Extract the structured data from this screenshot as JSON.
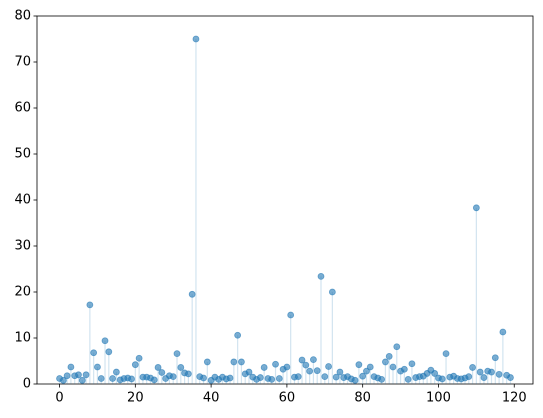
{
  "chart_data": {
    "type": "stem",
    "color": "#1f77b4",
    "x": [
      0,
      1,
      2,
      3,
      4,
      5,
      6,
      7,
      8,
      9,
      10,
      11,
      12,
      13,
      14,
      15,
      16,
      17,
      18,
      19,
      20,
      21,
      22,
      23,
      24,
      25,
      26,
      27,
      28,
      29,
      30,
      31,
      32,
      33,
      34,
      35,
      36,
      37,
      38,
      39,
      40,
      41,
      42,
      43,
      44,
      45,
      46,
      47,
      48,
      49,
      50,
      51,
      52,
      53,
      54,
      55,
      56,
      57,
      58,
      59,
      60,
      61,
      62,
      63,
      64,
      65,
      66,
      67,
      68,
      69,
      70,
      71,
      72,
      73,
      74,
      75,
      76,
      77,
      78,
      79,
      80,
      81,
      82,
      83,
      84,
      85,
      86,
      87,
      88,
      89,
      90,
      91,
      92,
      93,
      94,
      95,
      96,
      97,
      98,
      99,
      100,
      101,
      102,
      103,
      104,
      105,
      106,
      107,
      108,
      109,
      110,
      111,
      112,
      113,
      114,
      115,
      116,
      117,
      118,
      119
    ],
    "values": [
      1.2,
      0.8,
      1.8,
      3.7,
      1.8,
      2.0,
      0.8,
      2.0,
      17.2,
      6.8,
      3.7,
      1.2,
      9.4,
      7.0,
      1.2,
      2.6,
      0.9,
      1.2,
      1.3,
      1.1,
      4.2,
      5.6,
      1.5,
      1.5,
      1.3,
      0.9,
      3.6,
      2.5,
      1.2,
      1.8,
      1.6,
      6.6,
      3.6,
      2.4,
      2.2,
      19.5,
      75.0,
      1.6,
      1.3,
      4.8,
      0.8,
      1.5,
      1.0,
      1.5,
      1.1,
      1.3,
      4.8,
      10.6,
      4.8,
      2.2,
      2.6,
      1.5,
      1.0,
      1.4,
      3.6,
      1.2,
      1.0,
      4.3,
      1.2,
      3.2,
      3.7,
      15.0,
      1.5,
      1.6,
      5.2,
      4.1,
      2.8,
      5.3,
      2.9,
      23.4,
      1.6,
      3.8,
      20.0,
      1.5,
      2.6,
      1.4,
      1.6,
      1.1,
      0.8,
      4.2,
      1.7,
      2.8,
      3.7,
      1.6,
      1.3,
      1.0,
      4.8,
      6.0,
      3.7,
      8.1,
      2.8,
      3.2,
      1.0,
      4.4,
      1.4,
      1.6,
      1.7,
      2.3,
      3.0,
      2.3,
      1.3,
      1.1,
      6.6,
      1.5,
      1.7,
      1.2,
      1.1,
      1.3,
      1.6,
      3.6,
      38.3,
      2.6,
      1.4,
      2.8,
      2.6,
      5.7,
      2.1,
      11.3,
      1.9,
      1.4
    ],
    "xlim": [
      -5.95,
      124.95
    ],
    "xticks": [
      0,
      20,
      40,
      60,
      80,
      100,
      120
    ],
    "ylim": [
      0,
      80
    ],
    "yticks": [
      0,
      10,
      20,
      30,
      40,
      50,
      60,
      70,
      80
    ]
  }
}
